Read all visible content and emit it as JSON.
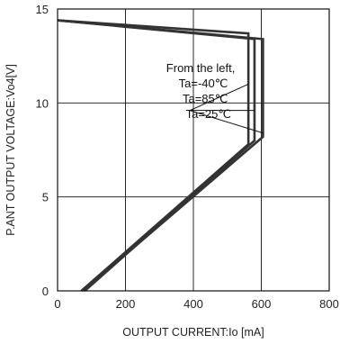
{
  "chart_data": {
    "type": "line",
    "xlabel": "OUTPUT CURRENT:Io [mA]",
    "ylabel": "P.ANT OUTPUT VOLTAGE:Vo4[V]",
    "xlim": [
      0,
      800
    ],
    "ylim": [
      0,
      15
    ],
    "x_ticks": [
      "0",
      "200",
      "400",
      "600",
      "800"
    ],
    "y_ticks": [
      "0",
      "5",
      "10",
      "15"
    ],
    "grid": true,
    "annotation": {
      "lines": [
        "From the left,",
        "Ta=-40℃",
        "Ta=85℃",
        "Ta=25℃"
      ]
    },
    "series": [
      {
        "x": [
          0,
          562,
          562,
          70
        ],
        "y": [
          14.4,
          13.7,
          7.8,
          0
        ]
      },
      {
        "x": [
          0,
          580,
          580,
          80
        ],
        "y": [
          14.4,
          13.4,
          8.0,
          0
        ]
      },
      {
        "x": [
          0,
          605,
          605,
          75
        ],
        "y": [
          14.4,
          13.4,
          8.2,
          0
        ]
      }
    ],
    "colors": {
      "line": "#333333",
      "grid": "#111111",
      "frame": "#111111"
    }
  }
}
